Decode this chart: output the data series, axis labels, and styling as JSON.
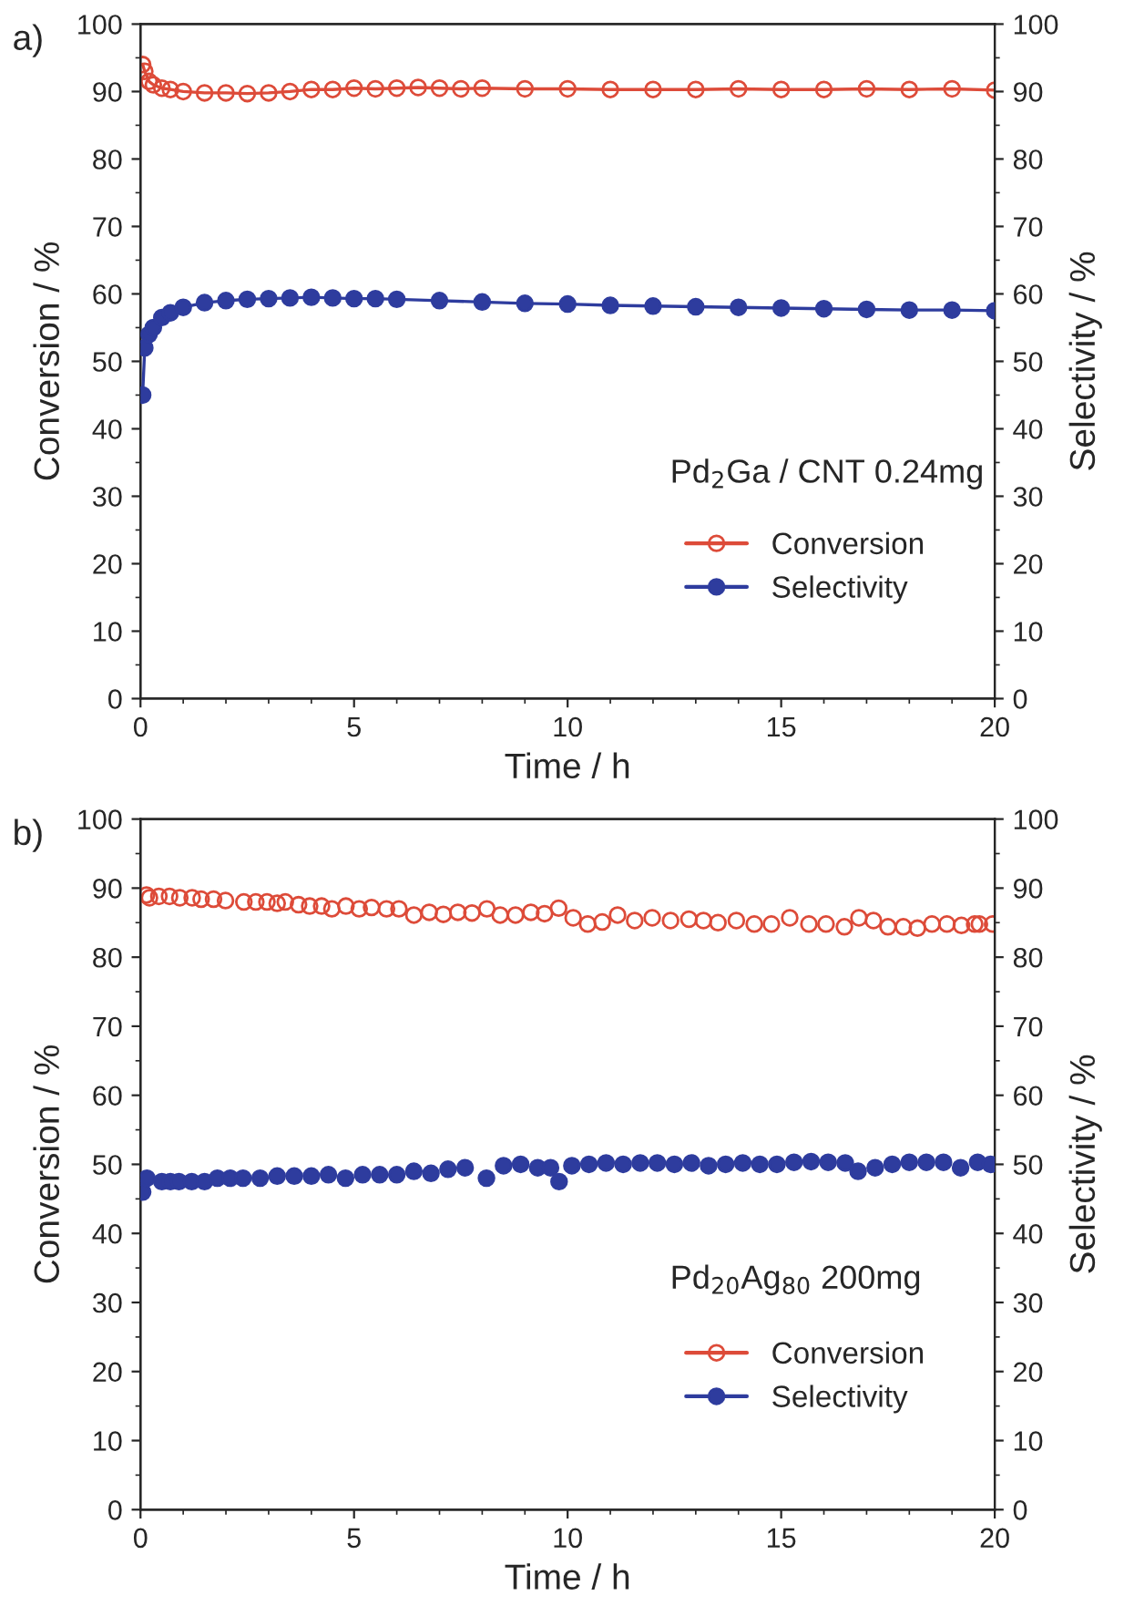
{
  "chart_data": [
    {
      "type": "line",
      "title": "a)",
      "xlabel": "Time / h",
      "ylabel": "Conversion / %",
      "y2label": "Selectivity / %",
      "xlim": [
        0,
        20
      ],
      "xticks": [
        0,
        5,
        10,
        15,
        20
      ],
      "ylim": [
        0,
        100
      ],
      "yticks": [
        0,
        10,
        20,
        30,
        40,
        50,
        60,
        70,
        80,
        90,
        100
      ],
      "y2lim": [
        0,
        100
      ],
      "y2ticks": [
        0,
        10,
        20,
        30,
        40,
        50,
        60,
        70,
        80,
        90,
        100
      ],
      "marker": "circle",
      "legend": "lower right",
      "grid": false,
      "annotations": [
        "Pd$_{2}$Ga / CNT 0.24mg"
      ],
      "series": [
        {
          "name": "Conversion",
          "color": "#dd4b39",
          "x": [
            0.05,
            0.1,
            0.2,
            0.3,
            0.5,
            0.7,
            1,
            1.5,
            2,
            2.5,
            3,
            3.5,
            4,
            4.5,
            5,
            5.5,
            6,
            6.5,
            7,
            7.5,
            8,
            9,
            10,
            11,
            12,
            13,
            14,
            15,
            16,
            17,
            18,
            19,
            20
          ],
          "values": [
            94,
            93,
            91.5,
            91,
            90.5,
            90.3,
            90,
            89.8,
            89.8,
            89.7,
            89.8,
            90,
            90.3,
            90.3,
            90.5,
            90.4,
            90.5,
            90.6,
            90.5,
            90.4,
            90.5,
            90.4,
            90.4,
            90.3,
            90.3,
            90.3,
            90.4,
            90.3,
            90.3,
            90.4,
            90.3,
            90.4,
            90.2
          ]
        },
        {
          "name": "Selectivity",
          "color": "#2e3c9e",
          "axis": "y2",
          "x": [
            0.05,
            0.1,
            0.2,
            0.3,
            0.5,
            0.7,
            1,
            1.5,
            2,
            2.5,
            3,
            3.5,
            4,
            4.5,
            5,
            5.5,
            6,
            7,
            8,
            9,
            10,
            11,
            12,
            13,
            14,
            15,
            16,
            17,
            18,
            19,
            20
          ],
          "values": [
            45,
            52,
            54,
            55,
            56.5,
            57.2,
            58,
            58.7,
            59,
            59.2,
            59.3,
            59.4,
            59.5,
            59.4,
            59.3,
            59.3,
            59.2,
            59,
            58.8,
            58.6,
            58.5,
            58.3,
            58.2,
            58.1,
            58,
            57.9,
            57.8,
            57.7,
            57.6,
            57.6,
            57.5
          ]
        }
      ]
    },
    {
      "type": "scatter",
      "title": "b)",
      "xlabel": "Time / h",
      "ylabel": "Conversion / %",
      "y2label": "Selectivity / %",
      "xlim": [
        0,
        20
      ],
      "xticks": [
        0,
        5,
        10,
        15,
        20
      ],
      "ylim": [
        0,
        100
      ],
      "yticks": [
        0,
        10,
        20,
        30,
        40,
        50,
        60,
        70,
        80,
        90,
        100
      ],
      "y2lim": [
        0,
        100
      ],
      "y2ticks": [
        0,
        10,
        20,
        30,
        40,
        50,
        60,
        70,
        80,
        90,
        100
      ],
      "marker": "circle",
      "legend": "lower right",
      "grid": false,
      "annotations": [
        "Pd$_{20}$Ag$_{80}$ 200mg"
      ],
      "series": [
        {
          "name": "Conversion",
          "color": "#dd4b39",
          "x": [
            0.14,
            0.21,
            0.43,
            0.68,
            0.92,
            1.21,
            1.42,
            1.71,
            1.99,
            2.42,
            2.7,
            2.96,
            3.2,
            3.39,
            3.7,
            3.96,
            4.24,
            4.48,
            4.81,
            5.12,
            5.41,
            5.76,
            6.05,
            6.4,
            6.76,
            7.09,
            7.43,
            7.76,
            8.11,
            8.42,
            8.78,
            9.14,
            9.46,
            9.79,
            10.13,
            10.47,
            10.81,
            11.17,
            11.57,
            11.98,
            12.41,
            12.84,
            13.18,
            13.52,
            13.95,
            14.37,
            14.77,
            15.2,
            15.65,
            16.05,
            16.48,
            16.82,
            17.16,
            17.5,
            17.86,
            18.19,
            18.53,
            18.88,
            19.22,
            19.53,
            19.64,
            19.95
          ],
          "values": [
            89.0,
            88.6,
            88.8,
            88.8,
            88.6,
            88.6,
            88.4,
            88.4,
            88.2,
            88.0,
            88.0,
            88.0,
            87.8,
            88.0,
            87.6,
            87.4,
            87.4,
            87.0,
            87.4,
            87.0,
            87.2,
            87.0,
            87.0,
            86.1,
            86.5,
            86.2,
            86.5,
            86.4,
            87.0,
            86.1,
            86.1,
            86.5,
            86.3,
            87.1,
            85.7,
            84.8,
            85.1,
            86.1,
            85.3,
            85.7,
            85.3,
            85.5,
            85.3,
            85.0,
            85.3,
            84.8,
            84.8,
            85.7,
            84.8,
            84.8,
            84.4,
            85.7,
            85.3,
            84.4,
            84.4,
            84.2,
            84.8,
            84.8,
            84.6,
            84.8,
            84.8,
            84.8
          ]
        },
        {
          "name": "Selectivity",
          "color": "#2e3c9e",
          "axis": "y2",
          "x": [
            0.05,
            0.15,
            0.3,
            0.5,
            0.7,
            0.9,
            1.2,
            1.5,
            1.8,
            2.1,
            2.4,
            2.8,
            3.2,
            3.6,
            4.0,
            4.4,
            4.8,
            5.2,
            5.6,
            6.0,
            6.4,
            6.8,
            7.2,
            7.6,
            8.1,
            8.5,
            8.9,
            9.3,
            9.6,
            9.8,
            10.1,
            10.5,
            10.9,
            11.3,
            11.7,
            12.1,
            12.5,
            12.9,
            13.3,
            13.7,
            14.1,
            14.5,
            14.9,
            15.3,
            15.7,
            16.1,
            16.5,
            16.8,
            17.2,
            17.6,
            18.0,
            18.4,
            18.8,
            19.2,
            19.6,
            19.9
          ],
          "values": [
            46,
            48,
            null,
            47.5,
            47.5,
            47.5,
            47.5,
            47.5,
            48,
            48,
            48,
            48,
            48.3,
            48.3,
            48.3,
            48.5,
            48,
            48.5,
            48.5,
            48.5,
            49,
            48.7,
            49.3,
            49.5,
            48,
            49.8,
            50,
            49.5,
            49.5,
            47.5,
            49.8,
            50,
            50.2,
            50,
            50.2,
            50.2,
            50,
            50.2,
            49.8,
            50,
            50.2,
            50,
            50,
            50.3,
            50.4,
            50.3,
            50.2,
            49,
            49.5,
            50,
            50.3,
            50.3,
            50.3,
            49.5,
            50.3,
            50
          ]
        }
      ]
    }
  ]
}
